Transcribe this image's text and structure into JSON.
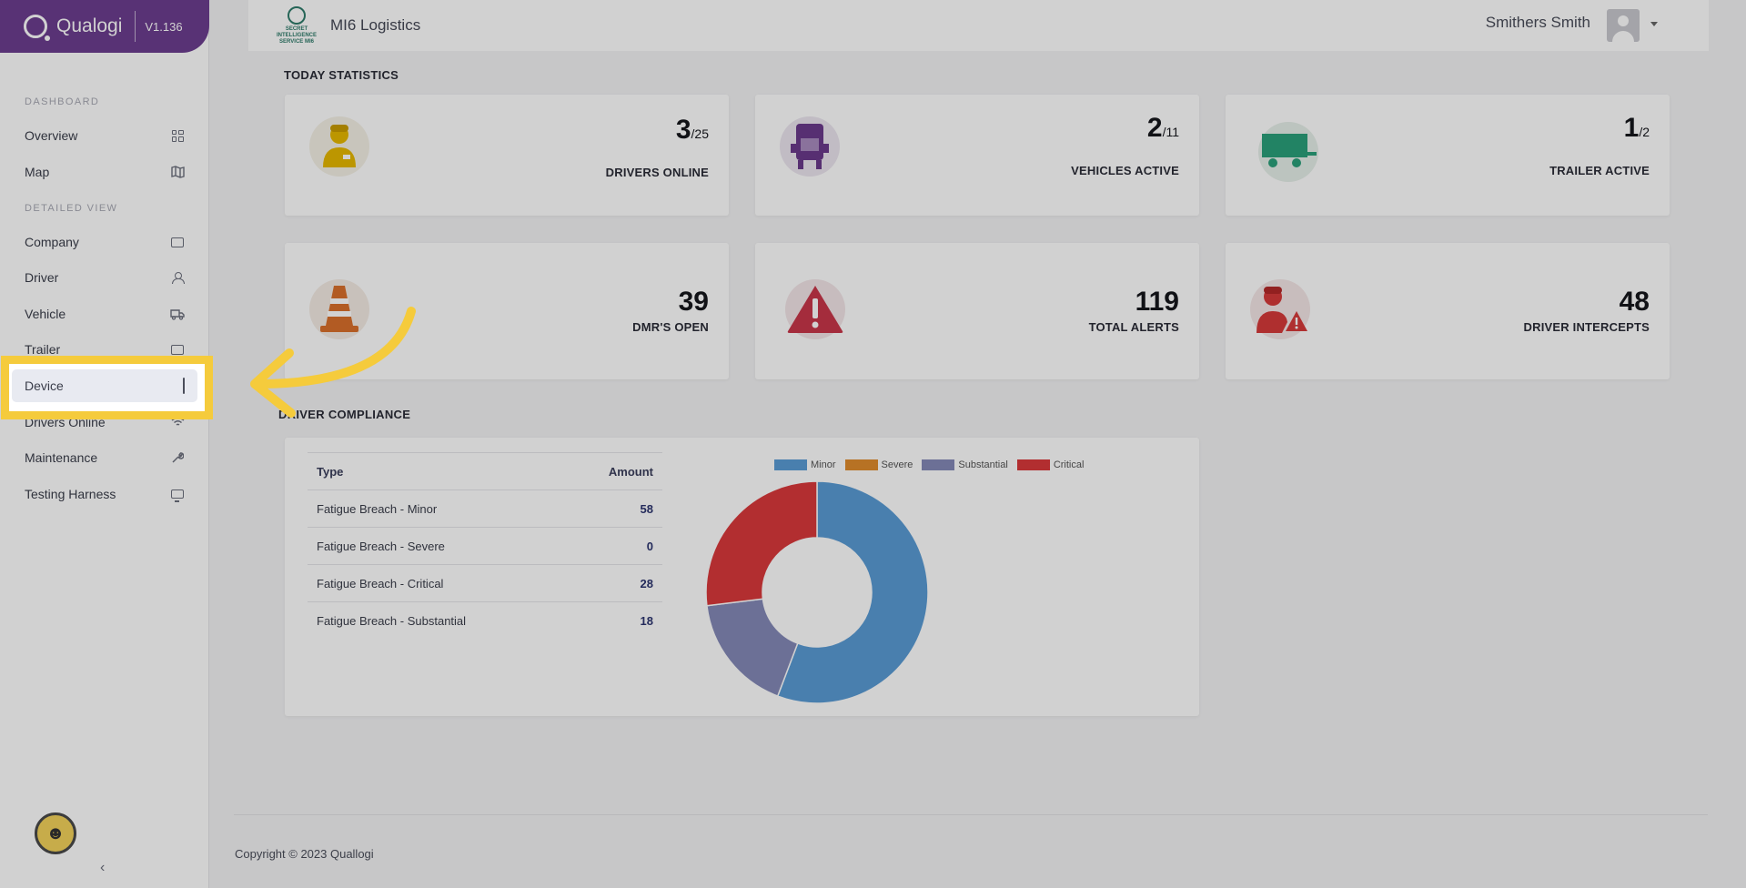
{
  "brand": {
    "name": "Qualogi",
    "version": "V1.136"
  },
  "sidebar": {
    "sections": [
      {
        "label": "DASHBOARD"
      },
      {
        "label": "DETAILED VIEW"
      }
    ],
    "items": [
      {
        "label": "Overview",
        "icon": "grid-icon"
      },
      {
        "label": "Map",
        "icon": "map-icon"
      },
      {
        "label": "Company",
        "icon": "briefcase-icon"
      },
      {
        "label": "Driver",
        "icon": "user-icon"
      },
      {
        "label": "Vehicle",
        "icon": "truck-icon"
      },
      {
        "label": "Trailer",
        "icon": "trailer-icon"
      },
      {
        "label": "Device",
        "icon": "phone-icon"
      },
      {
        "label": "Drivers Online",
        "icon": "wifi-icon"
      },
      {
        "label": "Maintenance",
        "icon": "wrench-icon"
      },
      {
        "label": "Testing Harness",
        "icon": "monitor-icon"
      }
    ],
    "collapse_glyph": "‹"
  },
  "header": {
    "crest_text": "SECRET INTELLIGENCE SERVICE MI6",
    "company": "MI6 Logistics",
    "username": "Smithers Smith"
  },
  "today_statistics": {
    "title": "TODAY STATISTICS",
    "cards": [
      {
        "value": "3",
        "total": "/25",
        "label": "DRIVERS ONLINE",
        "icon": "driver-icon",
        "color": "#e6b800"
      },
      {
        "value": "2",
        "total": "/11",
        "label": "VEHICLES ACTIVE",
        "icon": "truck-icon",
        "color": "#6b3a8c"
      },
      {
        "value": "1",
        "total": "/2",
        "label": "TRAILER ACTIVE",
        "icon": "trailer-icon",
        "color": "#2aa07a"
      },
      {
        "value": "39",
        "total": "",
        "label": "DMR'S OPEN",
        "icon": "traffic-cone-icon",
        "color": "#d9702b"
      },
      {
        "value": "119",
        "total": "",
        "label": "TOTAL ALERTS",
        "icon": "warning-icon",
        "color": "#c8364a"
      },
      {
        "value": "48",
        "total": "",
        "label": "DRIVER INTERCEPTS",
        "icon": "driver-alert-icon",
        "color": "#d63a3a"
      }
    ]
  },
  "compliance": {
    "title": "DRIVER COMPLIANCE",
    "columns": [
      "Type",
      "Amount"
    ],
    "rows": [
      {
        "type": "Fatigue Breach - Minor",
        "amount": "58"
      },
      {
        "type": "Fatigue Breach - Severe",
        "amount": "0"
      },
      {
        "type": "Fatigue Breach - Critical",
        "amount": "28"
      },
      {
        "type": "Fatigue Breach - Substantial",
        "amount": "18"
      }
    ]
  },
  "chart_data": {
    "type": "pie",
    "variant": "doughnut",
    "categories": [
      "Minor",
      "Severe",
      "Substantial",
      "Critical"
    ],
    "values": [
      58,
      0,
      18,
      28
    ],
    "colors": [
      "#5a9bd5",
      "#e08b2c",
      "#8489b8",
      "#d9393b"
    ],
    "legend": "top"
  },
  "footer": {
    "copyright": "Copyright © 2023 Quallogi"
  }
}
